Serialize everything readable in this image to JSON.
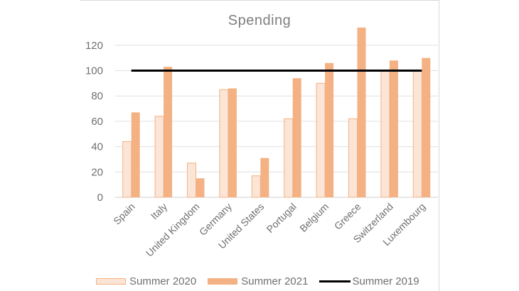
{
  "chart_data": {
    "type": "bar",
    "title": "Spending",
    "xlabel": "",
    "ylabel": "",
    "ylim": [
      0,
      140
    ],
    "yticks": [
      0,
      20,
      40,
      60,
      80,
      100,
      120
    ],
    "grid": true,
    "legend_position": "bottom",
    "categories": [
      "Spain",
      "Italy",
      "United Kingdom",
      "Germany",
      "United States",
      "Portugal",
      "Belgium",
      "Greece",
      "Switzerland",
      "Luxembourg"
    ],
    "series": [
      {
        "name": "Summer 2020",
        "type": "bar",
        "color": "#FBE5D6",
        "border": "#F4B183",
        "values": [
          44,
          64,
          27,
          85,
          17,
          62,
          90,
          62,
          100,
          100
        ]
      },
      {
        "name": "Summer 2021",
        "type": "bar",
        "color": "#F4B183",
        "values": [
          67,
          103,
          15,
          86,
          31,
          94,
          106,
          134,
          108,
          110
        ]
      },
      {
        "name": "Summer 2019",
        "type": "line",
        "color": "#000000",
        "values": [
          100,
          100,
          100,
          100,
          100,
          100,
          100,
          100,
          100,
          100
        ]
      }
    ]
  },
  "legend": {
    "items": [
      {
        "label": "Summer 2020"
      },
      {
        "label": "Summer 2021"
      },
      {
        "label": "Summer 2019"
      }
    ]
  }
}
